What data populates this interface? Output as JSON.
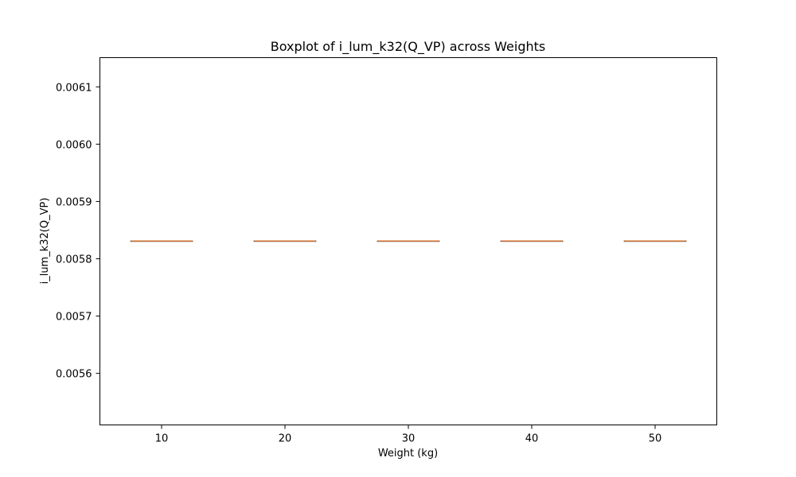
{
  "chart_data": {
    "type": "box",
    "title": "Boxplot of i_lum_k32(Q_VP) across Weights",
    "xlabel": "Weight (kg)",
    "ylabel": "i_lum_k32(Q_VP)",
    "categories": [
      "10",
      "20",
      "30",
      "40",
      "50"
    ],
    "x": [
      10,
      20,
      30,
      40,
      50
    ],
    "xlim": [
      5,
      55
    ],
    "ylim": [
      0.00551,
      0.006151
    ],
    "yticks": [
      0.0056,
      0.0057,
      0.0058,
      0.0059,
      0.006,
      0.0061
    ],
    "ytick_labels": [
      "0.0056",
      "0.0057",
      "0.0058",
      "0.0059",
      "0.0060",
      "0.0061"
    ],
    "boxes": [
      {
        "x": 10,
        "whislo": 0.005831,
        "q1": 0.005831,
        "med": 0.005831,
        "q3": 0.005831,
        "whishi": 0.005831
      },
      {
        "x": 20,
        "whislo": 0.005831,
        "q1": 0.005831,
        "med": 0.005831,
        "q3": 0.005831,
        "whishi": 0.005831
      },
      {
        "x": 30,
        "whislo": 0.005831,
        "q1": 0.005831,
        "med": 0.005831,
        "q3": 0.005831,
        "whishi": 0.005831
      },
      {
        "x": 40,
        "whislo": 0.005831,
        "q1": 0.005831,
        "med": 0.005831,
        "q3": 0.005831,
        "whishi": 0.005831
      },
      {
        "x": 50,
        "whislo": 0.005831,
        "q1": 0.005831,
        "med": 0.005831,
        "q3": 0.005831,
        "whishi": 0.005831
      }
    ],
    "box_width": 5,
    "grid": false,
    "colors": {
      "box": "#000000",
      "median": "#e08040",
      "axes": "#000000"
    }
  }
}
